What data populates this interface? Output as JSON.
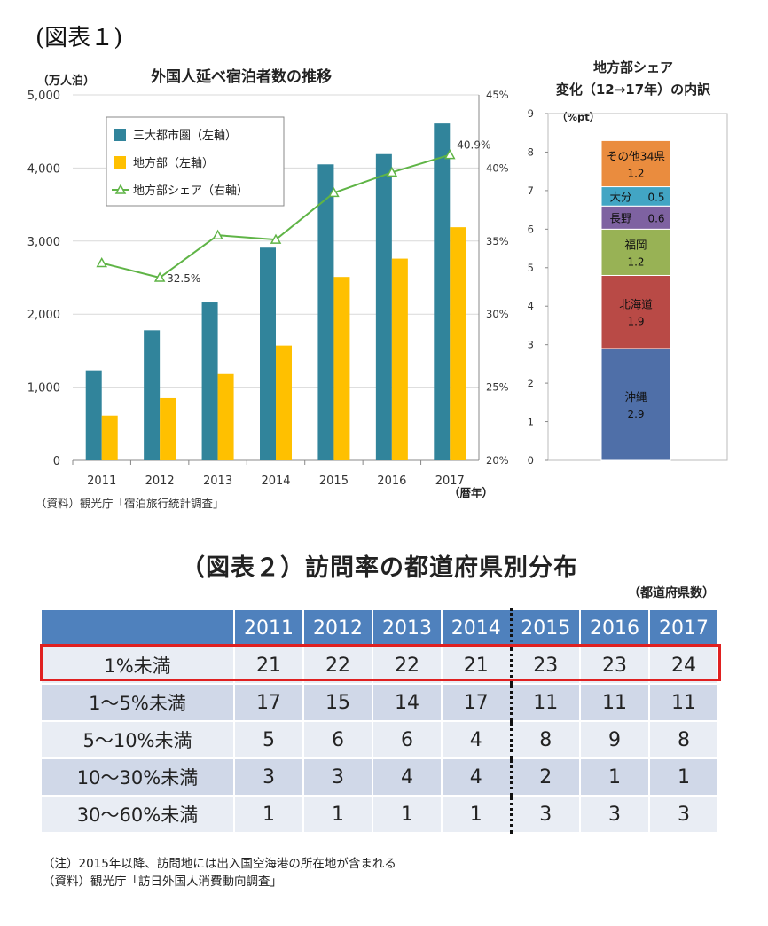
{
  "heading": "(図表１)",
  "chart_data": [
    {
      "type": "bar",
      "title": "外国人延べ宿泊者数の推移",
      "ylabel_left": "（万人泊）",
      "xlabel": "（暦年）",
      "categories": [
        "2011",
        "2012",
        "2013",
        "2014",
        "2015",
        "2016",
        "2017"
      ],
      "ylim_left": [
        0,
        5000
      ],
      "yticks_left": [
        "0",
        "1,000",
        "2,000",
        "3,000",
        "4,000",
        "5,000"
      ],
      "ylim_right": [
        20,
        45
      ],
      "yticks_right": [
        "20%",
        "25%",
        "30%",
        "35%",
        "40%",
        "45%"
      ],
      "series": [
        {
          "name": "三大都市圏（左軸）",
          "kind": "bar",
          "axis": "left",
          "color": "#31849b",
          "values": [
            1230,
            1780,
            2160,
            2910,
            4050,
            4190,
            4610
          ]
        },
        {
          "name": "地方部（左軸）",
          "kind": "bar",
          "axis": "left",
          "color": "#ffc000",
          "values": [
            610,
            850,
            1180,
            1570,
            2510,
            2760,
            3190
          ]
        },
        {
          "name": "地方部シェア（右軸）",
          "kind": "line",
          "axis": "right",
          "color": "#5fb446",
          "values": [
            33.5,
            32.5,
            35.4,
            35.1,
            38.3,
            39.7,
            40.9
          ]
        }
      ],
      "annotations": [
        {
          "index": 1,
          "text": "32.5%"
        },
        {
          "index": 6,
          "text": "40.9%"
        }
      ],
      "source": "（資料）観光庁「宿泊旅行統計調査」",
      "legend": "top-left"
    },
    {
      "type": "bar",
      "title_line1": "地方部シェア",
      "title_line2": "変化（12→17年）の内訳",
      "unit": "（%pt）",
      "ylim": [
        0,
        9
      ],
      "yticks": [
        "0",
        "1",
        "2",
        "3",
        "4",
        "5",
        "6",
        "7",
        "8",
        "9"
      ],
      "stacked": true,
      "segments": [
        {
          "name": "沖縄",
          "value": 2.9,
          "value_label": "2.9",
          "color": "#4f6fa8"
        },
        {
          "name": "北海道",
          "value": 1.9,
          "value_label": "1.9",
          "color": "#b94a46"
        },
        {
          "name": "福岡",
          "value": 1.2,
          "value_label": "1.2",
          "color": "#98b255"
        },
        {
          "name": "長野",
          "value": 0.6,
          "value_label": "0.6",
          "color": "#7e62a1"
        },
        {
          "name": "大分",
          "value": 0.5,
          "value_label": "0.5",
          "color": "#42a5c4"
        },
        {
          "name": "その他34県",
          "value": 1.2,
          "value_label": "1.2",
          "color": "#ea8c3e"
        }
      ]
    }
  ],
  "table": {
    "title": "（図表２）訪問率の都道府県別分布",
    "unit": "（都道府県数）",
    "columns": [
      "2011",
      "2012",
      "2013",
      "2014",
      "2015",
      "2016",
      "2017"
    ],
    "rows": [
      {
        "label": "1%未満",
        "values": [
          "21",
          "22",
          "22",
          "21",
          "23",
          "23",
          "24"
        ]
      },
      {
        "label": "1～5%未満",
        "values": [
          "17",
          "15",
          "14",
          "17",
          "11",
          "11",
          "11"
        ]
      },
      {
        "label": "5～10%未満",
        "values": [
          "5",
          "6",
          "6",
          "4",
          "8",
          "9",
          "8"
        ]
      },
      {
        "label": "10～30%未満",
        "values": [
          "3",
          "3",
          "4",
          "4",
          "2",
          "1",
          "1"
        ]
      },
      {
        "label": "30～60%未満",
        "values": [
          "1",
          "1",
          "1",
          "1",
          "3",
          "3",
          "3"
        ]
      }
    ],
    "note": "（注）2015年以降、訪問地には出入国空海港の所在地が含まれる",
    "source": "（資料）観光庁「訪日外国人消費動向調査」"
  }
}
